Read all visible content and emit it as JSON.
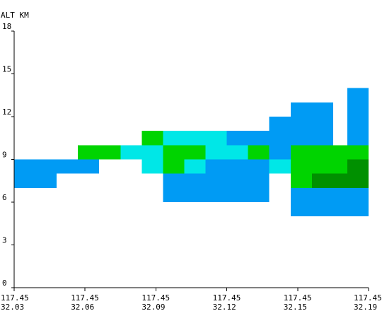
{
  "chart_data": {
    "type": "heatmap",
    "ylabel": "ALT KM",
    "yticks": [
      "0",
      "3",
      "6",
      "9",
      "12",
      "15",
      "18"
    ],
    "ytick_values": [
      0,
      3,
      6,
      9,
      12,
      15,
      18
    ],
    "ylim": [
      0,
      18
    ],
    "xticks": [
      {
        "lon": "117.45",
        "lat": "32.03",
        "pos": 0
      },
      {
        "lon": "117.45",
        "lat": "32.06",
        "pos": 5
      },
      {
        "lon": "117.45",
        "lat": "32.09",
        "pos": 10
      },
      {
        "lon": "117.45",
        "lat": "32.12",
        "pos": 15
      },
      {
        "lon": "117.45",
        "lat": "32.15",
        "pos": 20
      },
      {
        "lon": "117.45",
        "lat": "32.19",
        "pos": 25
      }
    ],
    "xlim": [
      0,
      25
    ],
    "grid": false,
    "colors": {
      "blue": "#009bf4",
      "cyan": "#00e7e7",
      "green": "#00d400",
      "dark_green": "#009000"
    },
    "cells": [
      {
        "x0": 0,
        "x1": 3,
        "y0": 7,
        "y1": 9,
        "color": "blue"
      },
      {
        "x0": 3,
        "x1": 6,
        "y0": 8,
        "y1": 9,
        "color": "blue"
      },
      {
        "x0": 4.5,
        "x1": 7.5,
        "y0": 9,
        "y1": 10,
        "color": "green"
      },
      {
        "x0": 7.5,
        "x1": 10.5,
        "y0": 9,
        "y1": 10,
        "color": "cyan"
      },
      {
        "x0": 9,
        "x1": 10.5,
        "y0": 10,
        "y1": 11,
        "color": "green"
      },
      {
        "x0": 9,
        "x1": 10.5,
        "y0": 8,
        "y1": 9,
        "color": "cyan"
      },
      {
        "x0": 10.5,
        "x1": 15,
        "y0": 10,
        "y1": 11,
        "color": "cyan"
      },
      {
        "x0": 10.5,
        "x1": 13.5,
        "y0": 9,
        "y1": 10,
        "color": "green"
      },
      {
        "x0": 10.5,
        "x1": 12,
        "y0": 8,
        "y1": 9,
        "color": "green"
      },
      {
        "x0": 12,
        "x1": 13.5,
        "y0": 8,
        "y1": 9,
        "color": "cyan"
      },
      {
        "x0": 13.5,
        "x1": 16.5,
        "y0": 9,
        "y1": 10,
        "color": "cyan"
      },
      {
        "x0": 13.5,
        "x1": 18,
        "y0": 8,
        "y1": 9,
        "color": "blue"
      },
      {
        "x0": 10.5,
        "x1": 18,
        "y0": 6,
        "y1": 8,
        "color": "blue"
      },
      {
        "x0": 15,
        "x1": 18,
        "y0": 10,
        "y1": 11,
        "color": "blue"
      },
      {
        "x0": 16.5,
        "x1": 18,
        "y0": 9,
        "y1": 10,
        "color": "green"
      },
      {
        "x0": 18,
        "x1": 19.5,
        "y0": 11,
        "y1": 12,
        "color": "blue"
      },
      {
        "x0": 18,
        "x1": 19.5,
        "y0": 9,
        "y1": 11,
        "color": "blue"
      },
      {
        "x0": 18,
        "x1": 19.5,
        "y0": 8,
        "y1": 9,
        "color": "cyan"
      },
      {
        "x0": 19.5,
        "x1": 22.5,
        "y0": 10,
        "y1": 13,
        "color": "blue"
      },
      {
        "x0": 19.5,
        "x1": 25,
        "y0": 8,
        "y1": 10,
        "color": "green"
      },
      {
        "x0": 19.5,
        "x1": 21,
        "y0": 7,
        "y1": 8,
        "color": "green"
      },
      {
        "x0": 21,
        "x1": 25,
        "y0": 7,
        "y1": 8,
        "color": "dark_green"
      },
      {
        "x0": 23.5,
        "x1": 25,
        "y0": 8,
        "y1": 9,
        "color": "dark_green"
      },
      {
        "x0": 23.5,
        "x1": 25,
        "y0": 10,
        "y1": 14,
        "color": "blue"
      },
      {
        "x0": 19.5,
        "x1": 25,
        "y0": 5,
        "y1": 7,
        "color": "blue"
      }
    ]
  }
}
